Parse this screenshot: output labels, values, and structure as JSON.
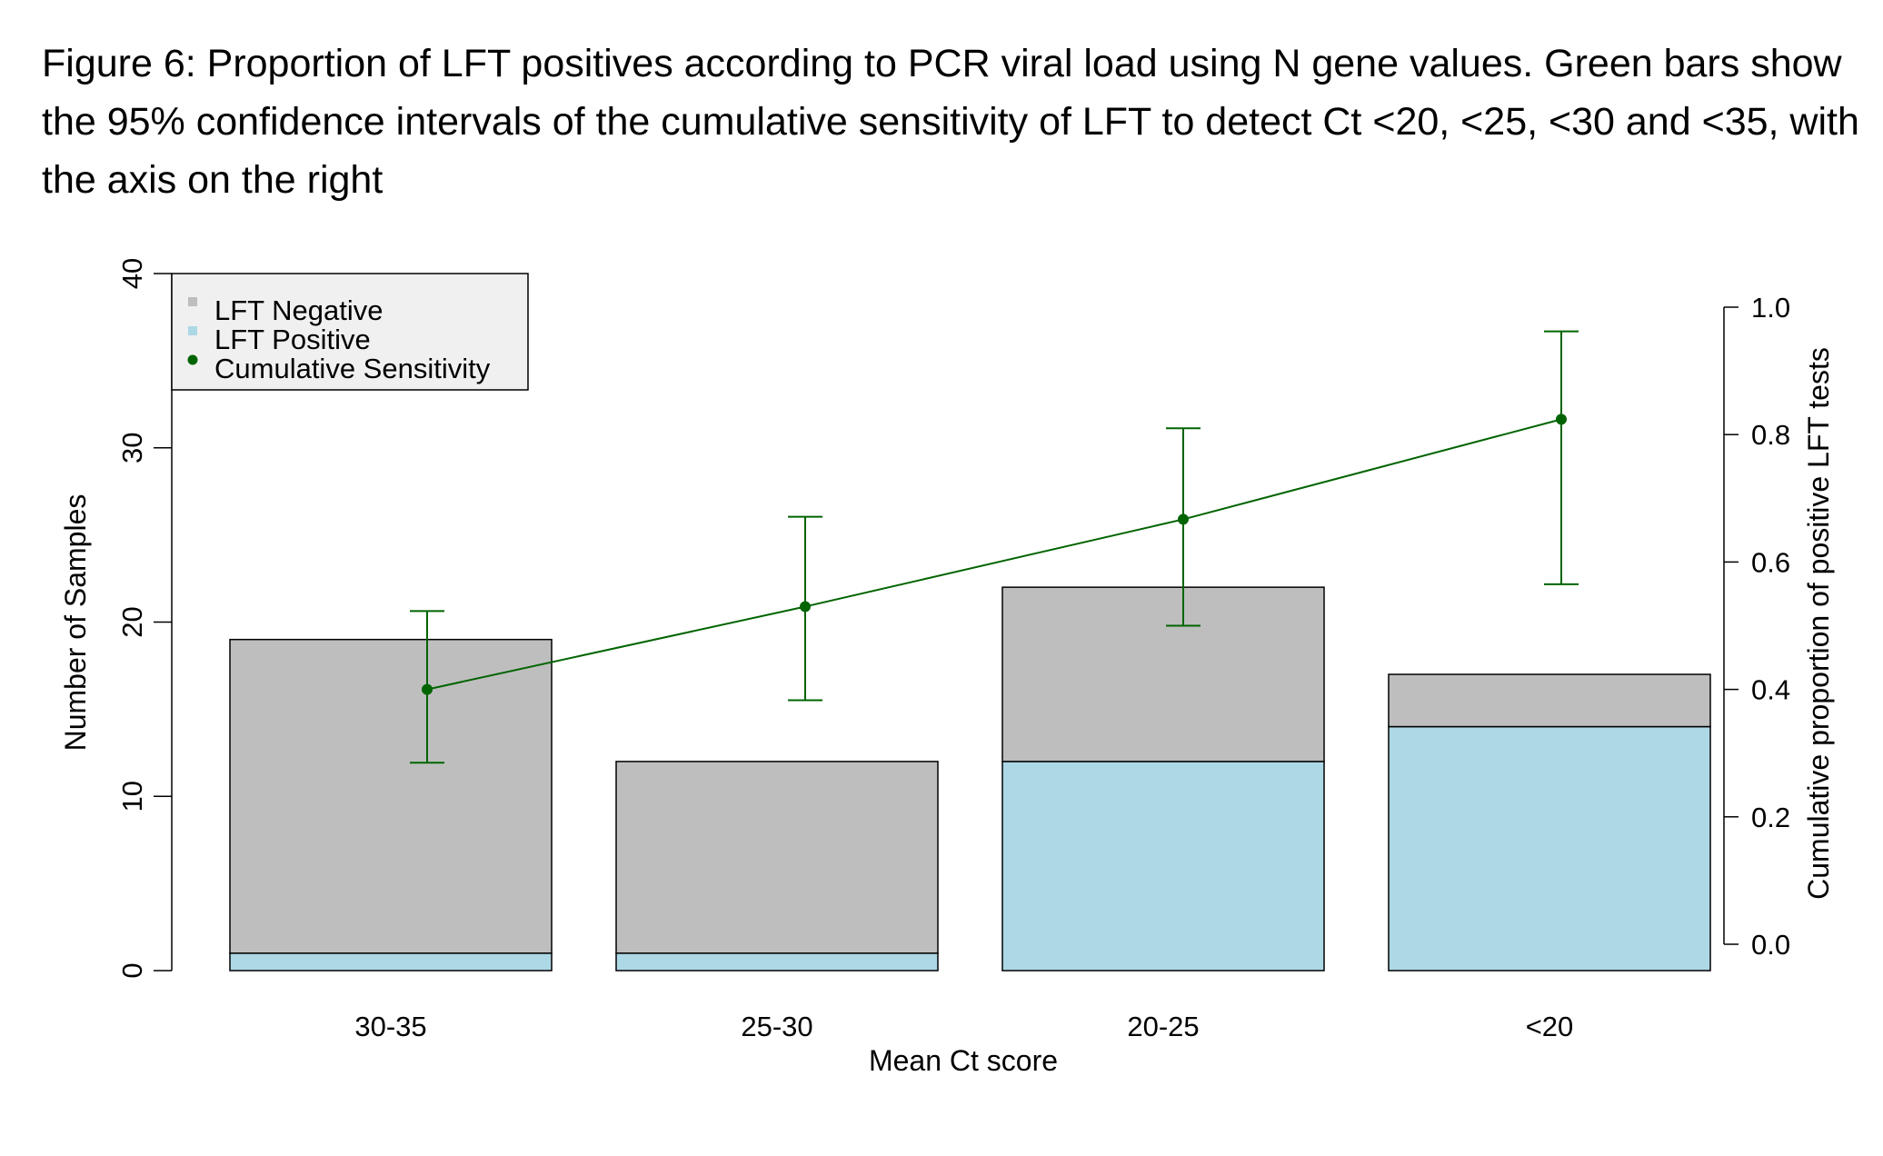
{
  "caption": "Figure 6: Proportion of LFT positives according to PCR viral load using N gene values. Green bars show the 95% confidence intervals of the cumulative sensitivity of LFT to detect Ct <20, <25, <30 and <35, with the axis on the right",
  "colors": {
    "negative": "#bebebe",
    "positive": "#add8e6",
    "sensitivity": "#006400",
    "legend_bg": "#f0f0f0"
  },
  "chart_data": {
    "type": "bar",
    "stacked": true,
    "xlabel": "Mean Ct score",
    "ylabel": "Number of Samples",
    "y2label": "Cumulative proportion of positive LFT tests",
    "ylim": [
      0,
      40
    ],
    "yticks": [
      "0",
      "10",
      "20",
      "30",
      "40"
    ],
    "y2lim": [
      0,
      1
    ],
    "y2ticks": [
      "0.0",
      "0.2",
      "0.4",
      "0.6",
      "0.8",
      "1.0"
    ],
    "categories": [
      "30-35",
      "25-30",
      "20-25",
      "<20"
    ],
    "series": [
      {
        "name": "LFT Positive",
        "values": [
          1,
          1,
          12,
          14
        ]
      },
      {
        "name": "LFT Negative",
        "values": [
          18,
          11,
          10,
          3
        ]
      }
    ],
    "cumulative_sensitivity": {
      "name": "Cumulative Sensitivity",
      "values": [
        0.4,
        0.53,
        0.667,
        0.824
      ],
      "ci_lower": [
        0.285,
        0.383,
        0.5,
        0.565
      ],
      "ci_upper": [
        0.523,
        0.671,
        0.81,
        0.962
      ]
    },
    "legend": [
      "LFT Negative",
      "LFT Positive",
      "Cumulative Sensitivity"
    ],
    "legend_position": "top-left"
  }
}
